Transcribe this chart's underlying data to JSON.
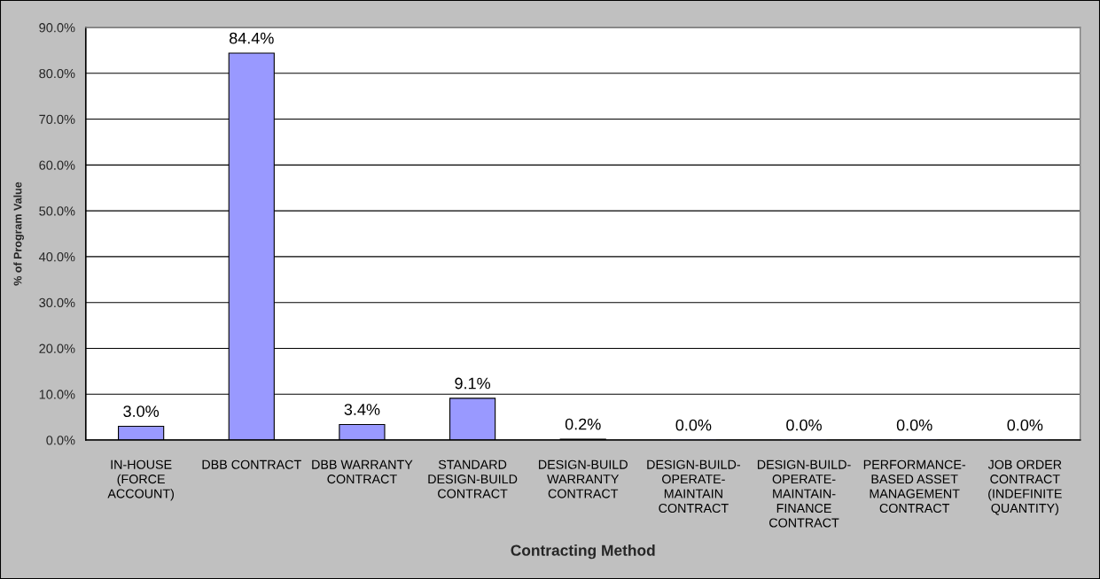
{
  "chart_data": {
    "type": "bar",
    "xlabel": "Contracting Method",
    "ylabel": "% of Program Value",
    "categories": [
      "IN-HOUSE\n(FORCE\nACCOUNT)",
      "DBB CONTRACT",
      "DBB WARRANTY\nCONTRACT",
      "STANDARD\nDESIGN-BUILD\nCONTRACT",
      "DESIGN-BUILD\nWARRANTY\nCONTRACT",
      "DESIGN-BUILD-\nOPERATE-\nMAINTAIN\nCONTRACT",
      "DESIGN-BUILD-\nOPERATE-\nMAINTAIN-\nFINANCE\nCONTRACT",
      "PERFORMANCE-\nBASED ASSET\nMANAGEMENT\nCONTRACT",
      "JOB ORDER\nCONTRACT\n(INDEFINITE\nQUANTITY)"
    ],
    "values": [
      3.0,
      84.4,
      3.4,
      9.1,
      0.2,
      0.0,
      0.0,
      0.0,
      0.0
    ],
    "value_labels": [
      "3.0%",
      "84.4%",
      "3.4%",
      "9.1%",
      "0.2%",
      "0.0%",
      "0.0%",
      "0.0%",
      "0.0%"
    ],
    "color": "#9999ff",
    "ylim": [
      0,
      90
    ],
    "yticks": [
      {
        "value": 0,
        "label": "0.0%"
      },
      {
        "value": 10,
        "label": "10.0%"
      },
      {
        "value": 20,
        "label": "20.0%"
      },
      {
        "value": 30,
        "label": "30.0%"
      },
      {
        "value": 40,
        "label": "40.0%"
      },
      {
        "value": 50,
        "label": "50.0%"
      },
      {
        "value": 60,
        "label": "60.0%"
      },
      {
        "value": 70,
        "label": "70.0%"
      },
      {
        "value": 80,
        "label": "80.0%"
      },
      {
        "value": 90,
        "label": "90.0%"
      }
    ],
    "grid": "y",
    "legend": false
  }
}
